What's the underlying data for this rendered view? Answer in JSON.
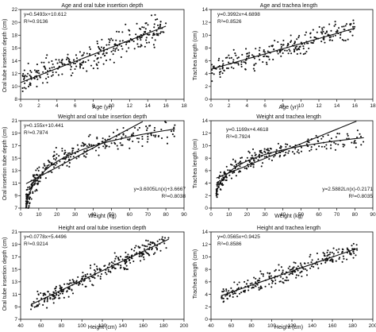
{
  "chart_data": [
    {
      "type": "scatter",
      "title": "Age and oral tube insertion depth",
      "xlabel": "Age (yr)",
      "ylabel": "Oral tube insertion depth (cm)",
      "xlim": [
        0,
        18
      ],
      "ylim": [
        8,
        22
      ],
      "xticks": [
        0,
        2,
        4,
        6,
        8,
        10,
        12,
        14,
        16,
        18
      ],
      "yticks": [
        8,
        10,
        12,
        14,
        16,
        18,
        20,
        22
      ],
      "grid": false,
      "annotations": [
        "y=0.5493x+10.612",
        "R²=0.9136"
      ],
      "x_range": [
        0,
        16
      ],
      "point_spread": 1.4,
      "point_count": 300,
      "fits": [
        {
          "kind": "linear",
          "a": 0.5493,
          "b": 10.612
        }
      ]
    },
    {
      "type": "scatter",
      "title": "Age and trachea length",
      "xlabel": "Age (yr)",
      "ylabel": "Trachea length (cm)",
      "xlim": [
        0,
        18
      ],
      "ylim": [
        0,
        14
      ],
      "xticks": [
        0,
        2,
        4,
        6,
        8,
        10,
        12,
        14,
        16,
        18
      ],
      "yticks": [
        0,
        2,
        4,
        6,
        8,
        10,
        12,
        14
      ],
      "grid": false,
      "annotations": [
        "y=0.3992x+4.6898",
        "R²=0.8526"
      ],
      "x_range": [
        0,
        16
      ],
      "point_spread": 1.2,
      "point_count": 260,
      "fits": [
        {
          "kind": "linear",
          "a": 0.3992,
          "b": 4.6898
        }
      ]
    },
    {
      "type": "scatter",
      "title": "Weight and oral tube insertion depth",
      "xlabel": "Weight (kg)",
      "ylabel": "Oral insertion tube depth (cm)",
      "xlim": [
        0,
        90
      ],
      "ylim": [
        7,
        21
      ],
      "xticks": [
        0,
        10,
        20,
        30,
        40,
        50,
        60,
        70,
        80,
        90
      ],
      "yticks": [
        7,
        9,
        11,
        13,
        15,
        17,
        19,
        21
      ],
      "grid": false,
      "annotations": [
        "y=0.155x+10.441",
        "R²=0.7874",
        "y=3.6005Ln(x)+3.6667",
        "R²=0.8038"
      ],
      "x_range": [
        3,
        85
      ],
      "point_spread": 1.2,
      "point_count": 300,
      "fits": [
        {
          "kind": "linear",
          "a": 0.155,
          "b": 10.441
        },
        {
          "kind": "log",
          "a": 3.6005,
          "b": 3.6667
        }
      ]
    },
    {
      "type": "scatter",
      "title": "Weight and trachea length",
      "xlabel": "Weight (kg)",
      "ylabel": "Trachea length (cm)",
      "xlim": [
        0,
        90
      ],
      "ylim": [
        0,
        14
      ],
      "xticks": [
        0,
        10,
        20,
        30,
        40,
        50,
        60,
        70,
        80,
        90
      ],
      "yticks": [
        0,
        2,
        4,
        6,
        8,
        10,
        12,
        14
      ],
      "grid": false,
      "annotations": [
        "y=0.1169x+4.4618",
        "R²=0.7924",
        "y=2.5882Ln(x)-0.2171",
        "R²=0.8035"
      ],
      "x_range": [
        3,
        85
      ],
      "point_spread": 1.0,
      "point_count": 260,
      "fits": [
        {
          "kind": "linear",
          "a": 0.1169,
          "b": 4.4618
        },
        {
          "kind": "log",
          "a": 2.5882,
          "b": -0.2171
        }
      ]
    },
    {
      "type": "scatter",
      "title": "Height and oral tube insertion depth",
      "xlabel": "Height (cm)",
      "ylabel": "Oral tube insertion depth (cm)",
      "xlim": [
        40,
        200
      ],
      "ylim": [
        7,
        21
      ],
      "xticks": [
        40,
        60,
        80,
        100,
        120,
        140,
        160,
        180,
        200
      ],
      "yticks": [
        7,
        9,
        11,
        13,
        15,
        17,
        19,
        21
      ],
      "grid": false,
      "annotations": [
        "y=0.0778x+5.4496",
        "R²=0.9214"
      ],
      "x_range": [
        50,
        185
      ],
      "point_spread": 1.0,
      "point_count": 300,
      "fits": [
        {
          "kind": "linear",
          "a": 0.0778,
          "b": 5.4496
        }
      ]
    },
    {
      "type": "scatter",
      "title": "Height and trachea length",
      "xlabel": "Height (cm)",
      "ylabel": "Trachea length (cm)",
      "xlim": [
        40,
        200
      ],
      "ylim": [
        0,
        14
      ],
      "xticks": [
        40,
        60,
        80,
        100,
        120,
        140,
        160,
        180,
        200
      ],
      "yticks": [
        0,
        2,
        4,
        6,
        8,
        10,
        12,
        14
      ],
      "grid": false,
      "annotations": [
        "y=0.0565x+0.9425",
        "R²=0.8586"
      ],
      "x_range": [
        50,
        185
      ],
      "point_spread": 0.9,
      "point_count": 260,
      "fits": [
        {
          "kind": "linear",
          "a": 0.0565,
          "b": 0.9425
        }
      ]
    }
  ]
}
